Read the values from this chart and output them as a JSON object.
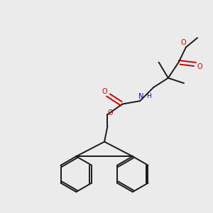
{
  "bg_color": "#ebebeb",
  "bond_color": "#1a1a1a",
  "oxygen_color": "#cc0000",
  "nitrogen_color": "#0000cc",
  "line_width": 1.4,
  "figsize": [
    3.0,
    3.0
  ],
  "dpi": 100,
  "xlim": [
    0,
    10
  ],
  "ylim": [
    0,
    10
  ]
}
